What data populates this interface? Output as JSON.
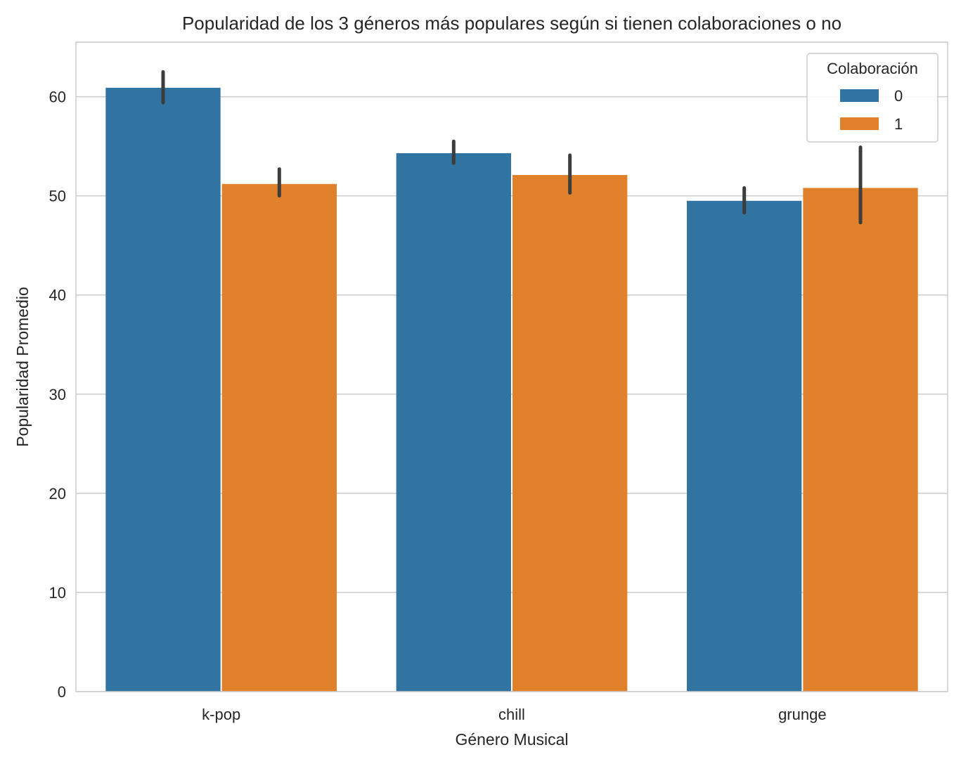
{
  "chart_data": {
    "type": "bar",
    "title": "Popularidad de los 3 géneros más populares según si tienen colaboraciones o no",
    "xlabel": "Género Musical",
    "ylabel": "Popularidad Promedio",
    "categories": [
      "k-pop",
      "chill",
      "grunge"
    ],
    "ylim": [
      0,
      65.5
    ],
    "yticks": [
      0,
      10,
      20,
      30,
      40,
      50,
      60
    ],
    "grid": true,
    "legend": {
      "title": "Colaboración",
      "placement": "top-right"
    },
    "series": [
      {
        "name": "0",
        "color": "#3274a1",
        "values": [
          60.9,
          54.3,
          49.5
        ],
        "ci": [
          [
            59.4,
            62.5
          ],
          [
            53.3,
            55.5
          ],
          [
            48.3,
            50.8
          ]
        ]
      },
      {
        "name": "1",
        "color": "#e1812c",
        "values": [
          51.2,
          52.1,
          50.8
        ],
        "ci": [
          [
            50.0,
            52.7
          ],
          [
            50.3,
            54.1
          ],
          [
            47.3,
            54.9
          ]
        ]
      }
    ],
    "errorbar_color": "#3d3d3d"
  }
}
